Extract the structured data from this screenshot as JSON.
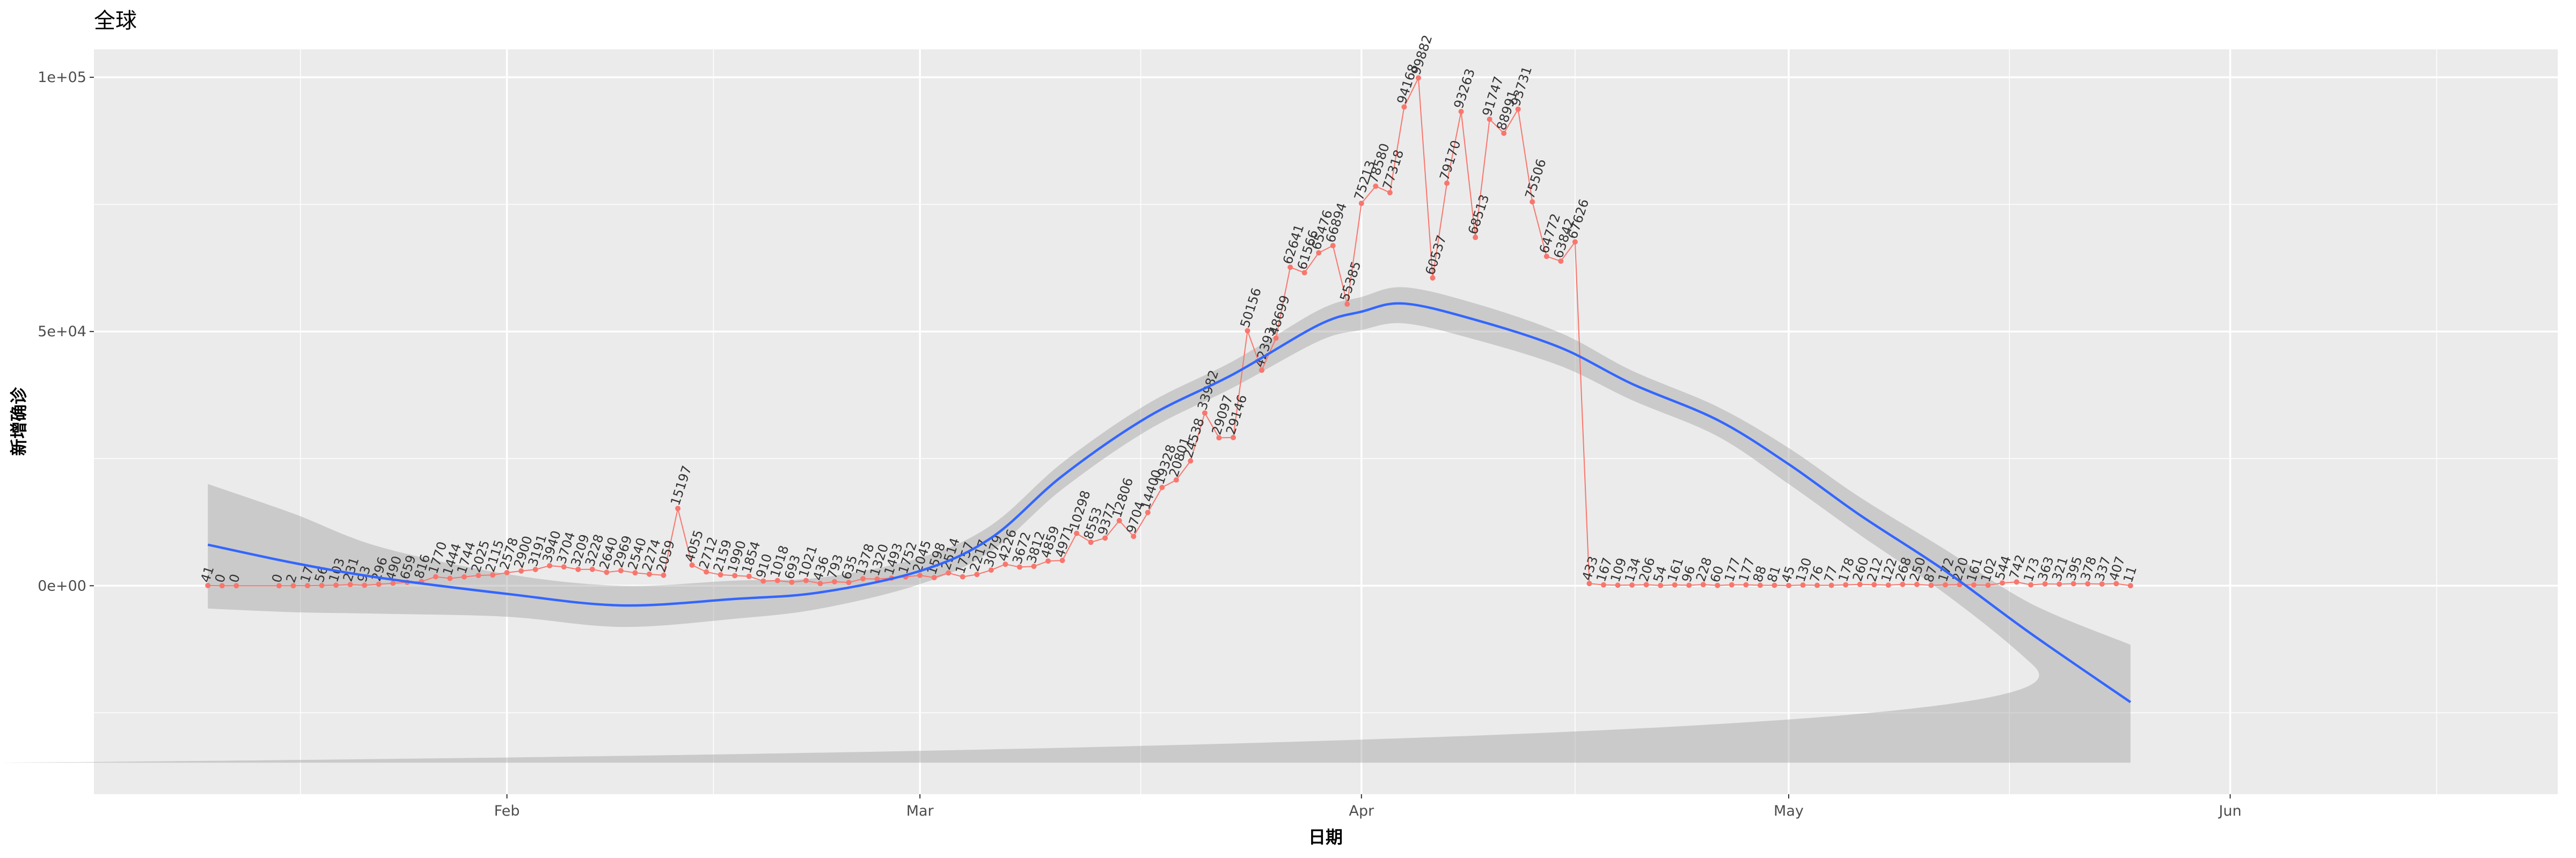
{
  "chart_data": {
    "type": "line",
    "title": "全球",
    "x_label": "日期",
    "y_label": "新增确诊",
    "color": "#f8766d",
    "x": [
      "01-11",
      "01-12",
      "01-13",
      "01-16",
      "01-17",
      "01-18",
      "01-19",
      "01-20",
      "01-21",
      "01-22",
      "01-23",
      "01-24",
      "01-25",
      "01-26",
      "01-27",
      "01-28",
      "01-29",
      "01-30",
      "01-31",
      "02-01",
      "02-02",
      "02-03",
      "02-04",
      "02-05",
      "02-06",
      "02-07",
      "02-08",
      "02-09",
      "02-10",
      "02-11",
      "02-12",
      "02-13",
      "02-14",
      "02-15",
      "02-16",
      "02-17",
      "02-18",
      "02-19",
      "02-20",
      "02-21",
      "02-22",
      "02-23",
      "02-24",
      "02-25",
      "02-26",
      "02-27",
      "02-28",
      "02-29",
      "03-01",
      "03-02",
      "03-03",
      "03-04",
      "03-05",
      "03-06",
      "03-07",
      "03-08",
      "03-09",
      "03-10",
      "03-11",
      "03-12",
      "03-13",
      "03-14",
      "03-15",
      "03-16",
      "03-17",
      "03-18",
      "03-19",
      "03-20",
      "03-21",
      "03-22",
      "03-23",
      "03-24",
      "03-25",
      "03-26",
      "03-27",
      "03-28",
      "03-29",
      "03-30",
      "03-31",
      "04-01",
      "04-02",
      "04-03",
      "04-04",
      "04-05",
      "04-06",
      "04-07",
      "04-08",
      "04-09",
      "04-10",
      "04-11",
      "04-12",
      "04-13",
      "04-14",
      "04-15",
      "04-16",
      "04-17",
      "04-18",
      "04-19",
      "04-20",
      "04-21",
      "04-22",
      "04-23",
      "04-24",
      "04-25",
      "04-26",
      "04-27",
      "04-28",
      "04-29",
      "04-30",
      "05-01",
      "05-02",
      "05-03",
      "05-04",
      "05-05",
      "05-06",
      "05-07",
      "05-08",
      "05-09",
      "05-10",
      "05-11",
      "05-12",
      "05-13",
      "05-14",
      "05-15",
      "05-16",
      "05-17",
      "05-18",
      "05-19",
      "05-20",
      "05-21",
      "05-22",
      "05-23",
      "05-24",
      "05-25"
    ],
    "values": [
      41,
      0,
      0,
      0,
      2,
      17,
      56,
      103,
      231,
      93,
      296,
      490,
      659,
      816,
      1770,
      1444,
      1744,
      2025,
      2115,
      2578,
      2900,
      3191,
      3940,
      3704,
      3209,
      3228,
      2640,
      2969,
      2540,
      2274,
      2059,
      15197,
      4055,
      2712,
      2159,
      1990,
      1854,
      910,
      1018,
      693,
      1021,
      436,
      793,
      635,
      1378,
      1320,
      1493,
      1752,
      2045,
      1598,
      2514,
      1757,
      2217,
      3079,
      4226,
      3672,
      3812,
      4859,
      4971,
      10298,
      8553,
      9377,
      12806,
      9704,
      14400,
      19328,
      20801,
      24538,
      33982,
      29097,
      29146,
      50156,
      42393,
      48699,
      62641,
      61566,
      65476,
      66894,
      55385,
      75213,
      78580,
      77318,
      94168,
      99882,
      60537,
      79170,
      93263,
      68513,
      91747,
      88991,
      93731,
      75506,
      64772,
      63842,
      67626,
      433,
      167,
      109,
      134,
      206,
      54,
      161,
      96,
      228,
      60,
      177,
      177,
      88,
      81,
      45,
      130,
      76,
      77,
      178,
      260,
      212,
      122,
      268,
      250,
      87,
      172,
      220,
      161,
      102,
      544,
      742,
      173,
      363,
      321,
      395,
      378,
      337,
      407,
      11
    ],
    "smooth": {
      "color": "#3366ff",
      "band_color": "#999999",
      "x": [
        "01-11",
        "01-17",
        "01-23",
        "02-01",
        "02-09",
        "02-17",
        "02-23",
        "03-01",
        "03-06",
        "03-11",
        "03-17",
        "03-23",
        "03-29",
        "04-01",
        "04-04",
        "04-09",
        "04-15",
        "04-20",
        "04-26",
        "05-01",
        "05-06",
        "05-12",
        "05-18",
        "05-25"
      ],
      "values": [
        8065,
        4500,
        1600,
        -1600,
        -3870,
        -2600,
        -1300,
        2900,
        9400,
        21600,
        33200,
        41600,
        51300,
        53900,
        55500,
        52300,
        46800,
        39700,
        32600,
        23900,
        13900,
        2900,
        -9400,
        -22900
      ],
      "lower": [
        -4500,
        -5200,
        -5500,
        -6100,
        -8100,
        -6500,
        -4500,
        300,
        6800,
        19000,
        30600,
        39000,
        48100,
        50300,
        51600,
        48400,
        43200,
        36500,
        29400,
        20000,
        10000,
        -1600,
        -15200,
        -34800
      ],
      "upper": [
        20000,
        14200,
        7700,
        2300,
        0,
        1000,
        1600,
        5500,
        11900,
        24200,
        35800,
        44200,
        54200,
        56800,
        58700,
        55500,
        49700,
        42300,
        35200,
        27100,
        17400,
        7100,
        -3500,
        -11600
      ]
    },
    "xlim": [
      "01-03",
      "06-24"
    ],
    "xticks": [
      {
        "value": "02-01",
        "label": "Feb"
      },
      {
        "value": "03-01",
        "label": "Mar"
      },
      {
        "value": "04-01",
        "label": "Apr"
      },
      {
        "value": "05-01",
        "label": "May"
      },
      {
        "value": "06-01",
        "label": "Jun"
      }
    ],
    "ylim": [
      -41000,
      105500
    ],
    "yticks": [
      {
        "value": 0,
        "label": "0e+00"
      },
      {
        "value": 50000,
        "label": "5e+04"
      },
      {
        "value": 100000,
        "label": "1e+05"
      }
    ],
    "grid": true
  }
}
